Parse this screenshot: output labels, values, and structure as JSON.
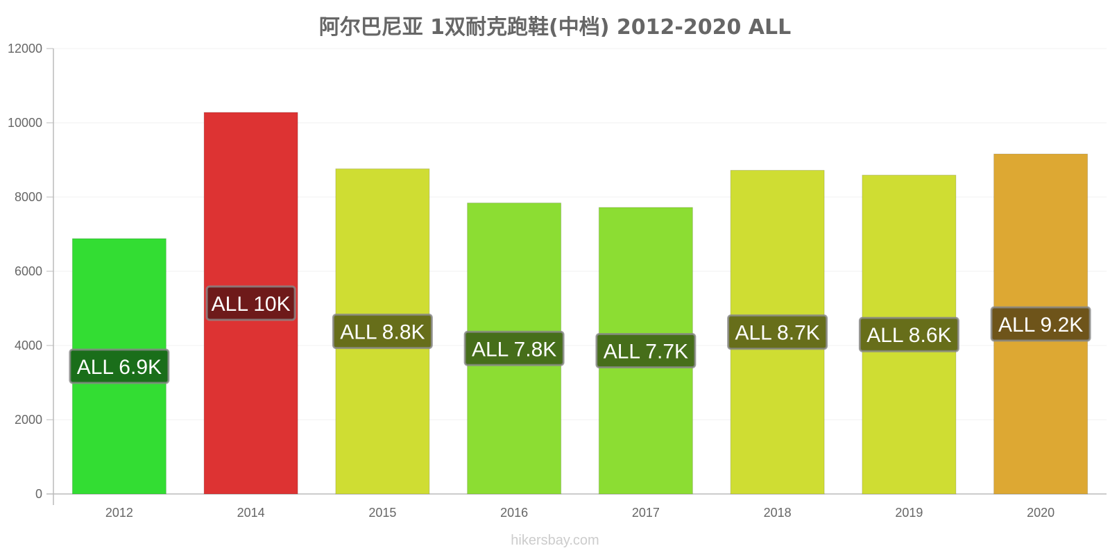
{
  "chart_data": {
    "type": "bar",
    "title": "阿尔巴尼亚 1双耐克跑鞋(中档) 2012-2020 ALL",
    "xlabel": "",
    "ylabel": "",
    "ylim": [
      0,
      12000
    ],
    "yticks": [
      0,
      2000,
      4000,
      6000,
      8000,
      10000,
      12000
    ],
    "grid": true,
    "categories": [
      "2012",
      "2014",
      "2015",
      "2016",
      "2017",
      "2018",
      "2019",
      "2020"
    ],
    "values": [
      6880,
      10280,
      8760,
      7840,
      7720,
      8720,
      8590,
      9160
    ],
    "data_labels": [
      "ALL 6.9K",
      "ALL 10K",
      "ALL 8.8K",
      "ALL 7.8K",
      "ALL 7.7K",
      "ALL 8.7K",
      "ALL 8.6K",
      "ALL 9.2K"
    ],
    "bar_colors": [
      "#33dd33",
      "#dd3333",
      "#cfdd33",
      "#8cdd33",
      "#8cdd33",
      "#cfdd33",
      "#cfdd33",
      "#dda833"
    ],
    "label_bg_colors": [
      "#1a6e1a",
      "#6e1a1a",
      "#676e1a",
      "#466e1a",
      "#466e1a",
      "#676e1a",
      "#676e1a",
      "#6e541a"
    ]
  },
  "watermark": "hikersbay.com"
}
